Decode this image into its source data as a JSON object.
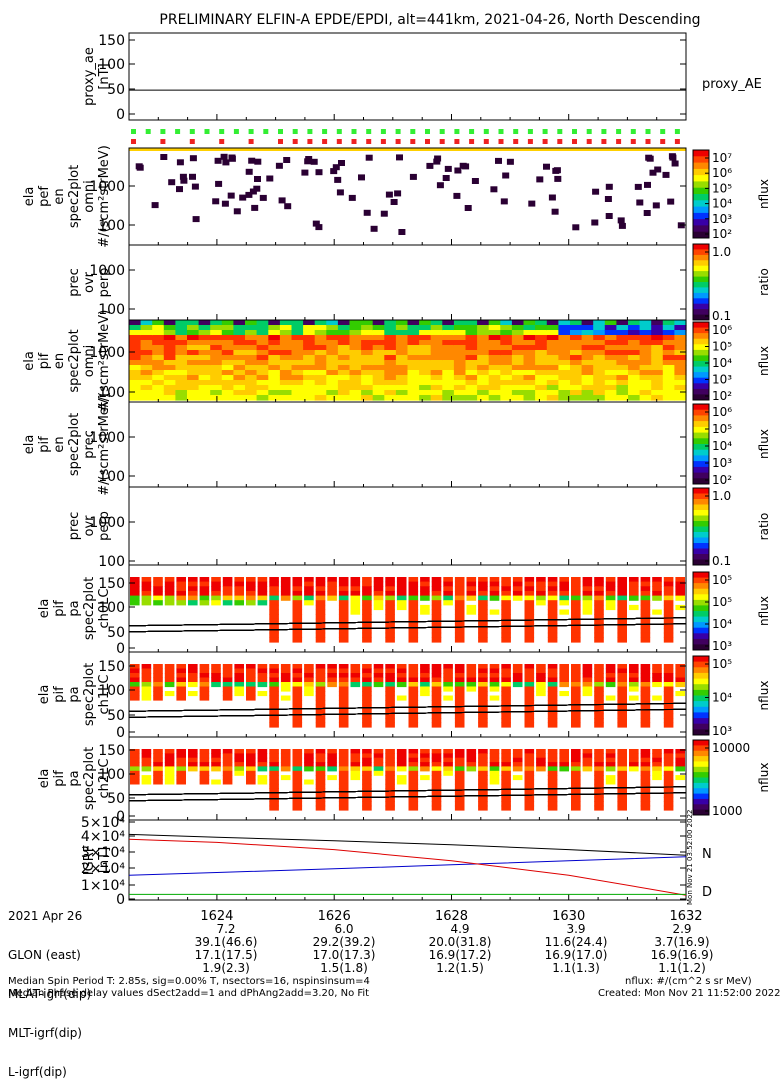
{
  "title": "PRELIMINARY ELFIN-A EPDE/EPDI, alt=441km, 2021-04-26, North Descending",
  "panels": [
    {
      "id": "proxy",
      "ylabel": [
        "proxy_ae",
        "[nT]"
      ],
      "yticks": [
        "150",
        "100",
        "50",
        "0"
      ],
      "right_label": "proxy_AE"
    },
    {
      "id": "elf-omni",
      "ylabel": [
        "ela",
        "pef",
        "en",
        "spec2plot",
        "omni",
        "#/(scm²strMeV)"
      ],
      "yticks": [
        "1000",
        "100"
      ]
    },
    {
      "id": "elf-ratio",
      "ylabel": [
        "prec",
        "ovr",
        "perp"
      ],
      "yticks": [
        "1000",
        "100"
      ]
    },
    {
      "id": "pif-omni",
      "ylabel": [
        "ela",
        "pif",
        "en",
        "spec2plot",
        "omni",
        "#/(scm²strMeV)"
      ],
      "yticks": [
        "1000",
        "100"
      ]
    },
    {
      "id": "pif-prec",
      "ylabel": [
        "ela",
        "pif",
        "en",
        "spec2plot",
        "prec",
        "#/(scm²strMeV)"
      ],
      "yticks": [
        "1000",
        "100"
      ]
    },
    {
      "id": "pif-ratio",
      "ylabel": [
        "prec",
        "ovr",
        "perp"
      ],
      "yticks": [
        "1000",
        "100"
      ]
    },
    {
      "id": "pa-ch0",
      "ylabel": [
        "ela",
        "pif",
        "pa",
        "spec2plot",
        "ch0LC"
      ],
      "yticks": [
        "150",
        "100",
        "50",
        "0"
      ]
    },
    {
      "id": "pa-ch1",
      "ylabel": [
        "ela",
        "pif",
        "pa",
        "spec2plot",
        "ch1LC"
      ],
      "yticks": [
        "150",
        "100",
        "50",
        "0"
      ]
    },
    {
      "id": "pa-ch2",
      "ylabel": [
        "ela",
        "pif",
        "pa",
        "spec2plot",
        "ch2LC"
      ],
      "yticks": [
        "150",
        "100",
        "50",
        "0"
      ]
    },
    {
      "id": "igrf",
      "ylabel": [
        "IGRF",
        "[nT]"
      ],
      "yticks": [
        "5×10⁴",
        "4×10⁴",
        "3×10⁴",
        "2×10⁴",
        "1×10⁴",
        "0"
      ],
      "legend": [
        "N",
        "D"
      ]
    }
  ],
  "colorbars": [
    {
      "label": "nflux",
      "ticks": [
        "10⁷",
        "10⁶",
        "10⁵",
        "10⁴",
        "10³",
        "10²"
      ]
    },
    {
      "label": "ratio",
      "ticks": [
        "1.0",
        "0.1"
      ]
    },
    {
      "label": "nflux",
      "ticks": [
        "10⁶",
        "10⁵",
        "10⁴",
        "10³",
        "10²"
      ]
    },
    {
      "label": "nflux",
      "ticks": [
        "10⁶",
        "10⁵",
        "10⁴",
        "10³",
        "10²"
      ]
    },
    {
      "label": "ratio",
      "ticks": [
        "1.0",
        "0.1"
      ]
    },
    {
      "label": "nflux",
      "ticks": [
        "10⁵",
        "10⁵",
        "10⁴",
        "10³"
      ]
    },
    {
      "label": "nflux",
      "ticks": [
        "10⁵",
        "10⁴",
        "10³"
      ]
    },
    {
      "label": "nflux",
      "ticks": [
        "10000",
        "1000"
      ]
    }
  ],
  "side_stamp": "Mon Nov 21 03:52:00 2022",
  "footer": {
    "date": "2021 Apr 26",
    "rows": [
      {
        "label": "GLON (east)",
        "values": [
          "7.2",
          "6.0",
          "4.9",
          "3.9",
          "2.9"
        ]
      },
      {
        "label": "MLAT-igrf(dip)",
        "values": [
          "39.1(46.6)",
          "29.2(39.2)",
          "20.0(31.8)",
          "11.6(24.4)",
          "3.7(16.9)"
        ]
      },
      {
        "label": "MLT-igrf(dip)",
        "values": [
          "17.1(17.5)",
          "17.0(17.3)",
          "16.9(17.2)",
          "16.9(17.0)",
          "16.9(16.9)"
        ]
      },
      {
        "label": "L-igrf(dip)",
        "values": [
          "1.9(2.3)",
          "1.5(1.8)",
          "1.2(1.5)",
          "1.1(1.3)",
          "1.1(1.2)"
        ]
      }
    ],
    "note1": "Median Spin Period T: 2.85s, sig=0.00% T, nsectors=16, nspinsinsum=4",
    "note2": "Median Phase delay values dSect2add=1 and dPhAng2add=3.20, No Fit",
    "units": "nflux: #/(cm^2 s sr MeV)",
    "created": "Created: Mon Nov 21 11:52:00 2022"
  },
  "chart_data": {
    "type": "line",
    "title": "PRELIMINARY ELFIN-A EPDE/EPDI, alt=441km, 2021-04-26, North Descending",
    "x_ticks": [
      "1624",
      "1626",
      "1628",
      "1630",
      "1632"
    ],
    "x_unit": "UT hhmm",
    "xlim": [
      "16:22:30",
      "16:32:00"
    ],
    "series": [
      {
        "panel": "proxy",
        "name": "proxy_AE",
        "x": [
          "16:22:30",
          "16:32:00"
        ],
        "y": [
          55,
          55
        ]
      },
      {
        "panel": "igrf",
        "name": "N",
        "x": [
          "16:22:30",
          "16:24",
          "16:26",
          "16:28",
          "16:30",
          "16:32"
        ],
        "y": [
          15500,
          17200,
          19500,
          22000,
          24500,
          27000
        ]
      },
      {
        "panel": "igrf",
        "name": "D",
        "x": [
          "16:22:30",
          "16:24",
          "16:26",
          "16:28",
          "16:30",
          "16:32"
        ],
        "y": [
          38000,
          36000,
          31500,
          24500,
          15500,
          3000
        ]
      },
      {
        "panel": "igrf",
        "name": "",
        "x": [
          "16:22:30",
          "16:24",
          "16:26",
          "16:28",
          "16:30",
          "16:32"
        ],
        "y": [
          41000,
          39200,
          37000,
          34500,
          31500,
          28000
        ]
      },
      {
        "panel": "igrf",
        "name": "",
        "x": [
          "16:22:30",
          "16:32"
        ],
        "y": [
          3500,
          3500
        ]
      }
    ],
    "ylim_proxy": [
      0,
      160
    ],
    "ylim_igrf": [
      0,
      50000
    ],
    "pa_ylim": [
      0,
      180
    ]
  }
}
